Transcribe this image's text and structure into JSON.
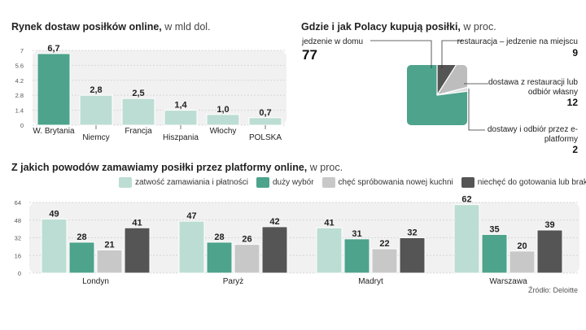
{
  "chart_data": [
    {
      "type": "bar",
      "title": "Rynek dostaw posiłków online,",
      "unit": "w mld dol.",
      "categories": [
        "W. Brytania",
        "Niemcy",
        "Francja",
        "Hiszpania",
        "Włochy",
        "POLSKA"
      ],
      "values": [
        6.7,
        2.8,
        2.5,
        1.4,
        1.0,
        0.7
      ],
      "value_labels": [
        "6,7",
        "2,8",
        "2,5",
        "1,4",
        "1,0",
        "0,7"
      ],
      "yticks": [
        "0",
        "1.4",
        "2.8",
        "4.2",
        "5.6",
        "7"
      ],
      "ylim": [
        0,
        7
      ],
      "colors": {
        "highlight": "#4ea38c",
        "normal": "#bcddd3"
      }
    },
    {
      "type": "pie",
      "title": "Gdzie i jak Polacy kupują posiłki,",
      "unit": "w proc.",
      "slices": [
        {
          "label": "jedzenie w domu",
          "value": 77,
          "color": "#4ea38c"
        },
        {
          "label": "restauracja – jedzenie na miejscu",
          "value": 9,
          "color": "#555555"
        },
        {
          "label": "dostawa z restauracji lub odbiór własny",
          "value": 12,
          "color": "#bdbdbd"
        },
        {
          "label": "dostawy i odbiór przez e-platformy",
          "value": 2,
          "color": "#e0e0e0"
        }
      ]
    },
    {
      "type": "bar",
      "title": "Z jakich powodów zamawiamy posiłki przez platformy online,",
      "unit": "w proc.",
      "categories": [
        "Londyn",
        "Paryż",
        "Madryt",
        "Warszawa"
      ],
      "series": [
        {
          "name": "zatwość zamawiania i płatności",
          "values": [
            49,
            47,
            41,
            62
          ],
          "color": "#bcddd3"
        },
        {
          "name": "duży wybór",
          "values": [
            28,
            28,
            31,
            35
          ],
          "color": "#4ea38c"
        },
        {
          "name": "chęć spróbowania nowej kuchni",
          "values": [
            21,
            26,
            22,
            20
          ],
          "color": "#c8c8c8"
        },
        {
          "name": "niechęć do gotowania lub brak czasu",
          "values": [
            41,
            42,
            32,
            39
          ],
          "color": "#555555"
        }
      ],
      "yticks": [
        "0",
        "16",
        "32",
        "48",
        "64"
      ],
      "ylim": [
        0,
        64
      ]
    }
  ],
  "source": "Źródło: Deloitte"
}
